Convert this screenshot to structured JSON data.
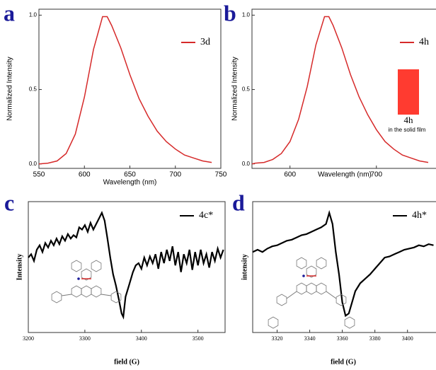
{
  "chart_data": [
    {
      "type": "line",
      "panel_label": "a",
      "xlabel": "Wavelength (nm)",
      "ylabel": "Normalized Intensity",
      "x": [
        550,
        560,
        570,
        580,
        590,
        600,
        610,
        620,
        625,
        630,
        640,
        650,
        660,
        670,
        680,
        690,
        700,
        710,
        720,
        730,
        740
      ],
      "series": [
        {
          "name": "3d",
          "color": "#d62a2a",
          "values": [
            0.0,
            0.005,
            0.02,
            0.07,
            0.2,
            0.45,
            0.77,
            0.99,
            0.99,
            0.93,
            0.78,
            0.6,
            0.44,
            0.32,
            0.22,
            0.15,
            0.1,
            0.06,
            0.04,
            0.02,
            0.01
          ]
        }
      ],
      "xlim": [
        550,
        750
      ],
      "ylim": [
        -0.03,
        1.04
      ],
      "xticks": [
        550,
        600,
        650,
        700,
        750
      ],
      "yticks": [
        {
          "value": 0,
          "label": "0.0"
        },
        0.5,
        {
          "value": 1,
          "label": "1.0"
        }
      ]
    },
    {
      "type": "line",
      "panel_label": "b",
      "xlabel": "Wavelength (nm)",
      "ylabel": "Normalized Intensity",
      "x": [
        556,
        560,
        570,
        580,
        590,
        600,
        610,
        620,
        630,
        640,
        645,
        650,
        660,
        670,
        680,
        690,
        700,
        710,
        720,
        730,
        740,
        750,
        760
      ],
      "series": [
        {
          "name": "4h",
          "color": "#d62a2a",
          "values": [
            0.0,
            0.005,
            0.01,
            0.03,
            0.07,
            0.15,
            0.3,
            0.52,
            0.8,
            0.99,
            0.99,
            0.93,
            0.78,
            0.6,
            0.45,
            0.33,
            0.23,
            0.15,
            0.1,
            0.06,
            0.04,
            0.02,
            0.01
          ]
        }
      ],
      "inset": {
        "label": "4h",
        "caption": "in the solid film",
        "color": "#ff3b30"
      },
      "xlim": [
        556,
        769
      ],
      "ylim": [
        -0.03,
        1.04
      ],
      "xticks": [
        600,
        700
      ],
      "yticks": [
        {
          "value": 0,
          "label": "0.0"
        },
        0.5,
        {
          "value": 1,
          "label": "1.0"
        }
      ]
    },
    {
      "type": "line",
      "panel_label": "c",
      "xlabel": "field (G)",
      "ylabel": "Intensity",
      "x": [
        3200,
        3205,
        3210,
        3215,
        3220,
        3225,
        3230,
        3235,
        3240,
        3245,
        3250,
        3255,
        3260,
        3265,
        3270,
        3275,
        3280,
        3285,
        3290,
        3295,
        3300,
        3305,
        3310,
        3315,
        3320,
        3325,
        3330,
        3335,
        3340,
        3345,
        3350,
        3355,
        3360,
        3365,
        3368,
        3372,
        3378,
        3385,
        3390,
        3395,
        3400,
        3405,
        3410,
        3415,
        3420,
        3425,
        3430,
        3435,
        3440,
        3445,
        3450,
        3455,
        3460,
        3465,
        3470,
        3475,
        3480,
        3485,
        3490,
        3495,
        3500,
        3505,
        3510,
        3515,
        3520,
        3525,
        3530,
        3535,
        3540,
        3545
      ],
      "series": [
        {
          "name": "4c*",
          "color": "#000000",
          "values": [
            0.55,
            0.58,
            0.52,
            0.62,
            0.66,
            0.6,
            0.68,
            0.64,
            0.7,
            0.66,
            0.72,
            0.67,
            0.74,
            0.7,
            0.76,
            0.72,
            0.75,
            0.73,
            0.82,
            0.8,
            0.84,
            0.78,
            0.86,
            0.8,
            0.85,
            0.9,
            0.95,
            0.88,
            0.72,
            0.55,
            0.4,
            0.3,
            0.18,
            0.05,
            0.02,
            0.2,
            0.3,
            0.42,
            0.48,
            0.5,
            0.45,
            0.55,
            0.48,
            0.56,
            0.5,
            0.58,
            0.45,
            0.6,
            0.5,
            0.62,
            0.52,
            0.65,
            0.48,
            0.6,
            0.42,
            0.58,
            0.5,
            0.62,
            0.44,
            0.6,
            0.48,
            0.62,
            0.5,
            0.58,
            0.46,
            0.6,
            0.52,
            0.63,
            0.55,
            0.62
          ]
        }
      ],
      "xlim": [
        3200,
        3548
      ],
      "ylim": [
        -0.12,
        1.05
      ],
      "xticks": [
        3200,
        3300,
        3400,
        3500
      ]
    },
    {
      "type": "line",
      "panel_label": "d",
      "xlabel": "field (G)",
      "ylabel": "intensity",
      "x": [
        3305,
        3308,
        3311,
        3314,
        3317,
        3320,
        3323,
        3326,
        3329,
        3332,
        3335,
        3338,
        3341,
        3344,
        3347,
        3350,
        3352,
        3354,
        3356,
        3358,
        3360,
        3362,
        3364,
        3366,
        3368,
        3371,
        3374,
        3377,
        3380,
        3383,
        3386,
        3389,
        3392,
        3395,
        3398,
        3401,
        3404,
        3407,
        3410,
        3413,
        3416
      ],
      "series": [
        {
          "name": "4h*",
          "color": "#000000",
          "values": [
            0.6,
            0.62,
            0.6,
            0.63,
            0.65,
            0.66,
            0.68,
            0.7,
            0.71,
            0.73,
            0.75,
            0.76,
            0.78,
            0.8,
            0.82,
            0.85,
            0.95,
            0.85,
            0.6,
            0.4,
            0.15,
            0.03,
            0.05,
            0.15,
            0.25,
            0.32,
            0.36,
            0.4,
            0.45,
            0.5,
            0.55,
            0.56,
            0.58,
            0.6,
            0.62,
            0.63,
            0.64,
            0.66,
            0.65,
            0.67,
            0.66
          ]
        }
      ],
      "xlim": [
        3305,
        3417.5
      ],
      "ylim": [
        -0.12,
        1.05
      ],
      "xticks": [
        3320,
        3340,
        3360,
        3380,
        3400
      ]
    }
  ]
}
